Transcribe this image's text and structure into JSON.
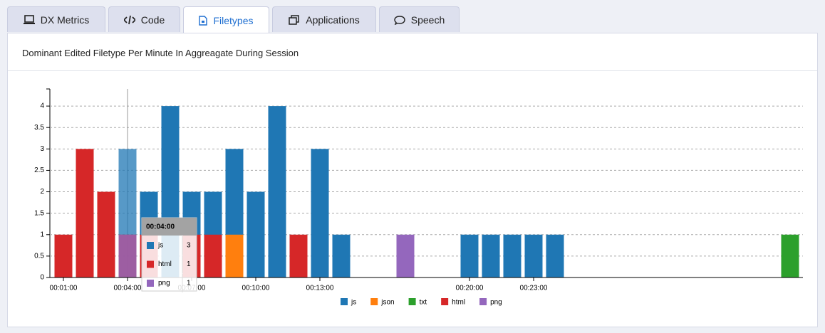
{
  "tabs": [
    "DX Metrics",
    "Code",
    "Filetypes",
    "Applications",
    "Speech"
  ],
  "active_tab": 2,
  "panel_title": "Dominant Edited Filetype Per Minute In Aggreagate During Session",
  "chart_data": {
    "type": "bar",
    "categories": [
      "00:01:00",
      null,
      null,
      "00:04:00",
      null,
      null,
      "00:07:00",
      null,
      null,
      "00:10:00",
      null,
      null,
      "00:13:00",
      null,
      null,
      null,
      null,
      null,
      null,
      "00:20:00",
      null,
      null,
      "00:23:00",
      null,
      null,
      null,
      null,
      null,
      null,
      null,
      null,
      null,
      null,
      null,
      null
    ],
    "series": [
      {
        "name": "js",
        "color": "#1f77b4",
        "values": [
          null,
          null,
          null,
          3,
          2,
          4,
          2,
          2,
          3,
          2,
          4,
          null,
          3,
          1,
          null,
          null,
          null,
          null,
          null,
          1,
          1,
          1,
          1,
          1,
          null,
          null,
          null,
          null,
          null,
          null,
          null,
          null,
          null,
          null,
          null
        ]
      },
      {
        "name": "json",
        "color": "#ff7f0e",
        "values": [
          null,
          null,
          null,
          null,
          null,
          null,
          null,
          null,
          1,
          null,
          null,
          null,
          null,
          null,
          null,
          null,
          null,
          null,
          null,
          null,
          null,
          null,
          null,
          null,
          null,
          null,
          null,
          null,
          null,
          null,
          null,
          null,
          null,
          null,
          null
        ]
      },
      {
        "name": "txt",
        "color": "#2ca02c",
        "values": [
          null,
          null,
          null,
          null,
          null,
          null,
          null,
          null,
          null,
          null,
          null,
          null,
          null,
          null,
          null,
          null,
          null,
          null,
          null,
          null,
          null,
          null,
          null,
          null,
          null,
          null,
          null,
          null,
          null,
          null,
          null,
          null,
          null,
          null,
          1
        ]
      },
      {
        "name": "html",
        "color": "#d62728",
        "values": [
          1,
          3,
          2,
          1,
          1,
          null,
          1,
          1,
          null,
          null,
          null,
          1,
          null,
          null,
          null,
          null,
          null,
          null,
          null,
          null,
          null,
          null,
          null,
          null,
          null,
          null,
          null,
          null,
          null,
          null,
          null,
          null,
          null,
          null,
          null
        ]
      },
      {
        "name": "png",
        "color": "#9467bd",
        "values": [
          null,
          null,
          null,
          1,
          null,
          null,
          null,
          null,
          null,
          null,
          null,
          null,
          null,
          null,
          null,
          null,
          1,
          null,
          null,
          null,
          null,
          null,
          null,
          null,
          null,
          null,
          null,
          null,
          null,
          null,
          null,
          null,
          null,
          null,
          null
        ]
      }
    ],
    "ylim": [
      0,
      4.4
    ],
    "yticks": [
      0,
      0.5,
      1,
      1.5,
      2,
      2.5,
      3,
      3.5,
      4
    ],
    "grid": true,
    "tooltip_index": 3
  }
}
